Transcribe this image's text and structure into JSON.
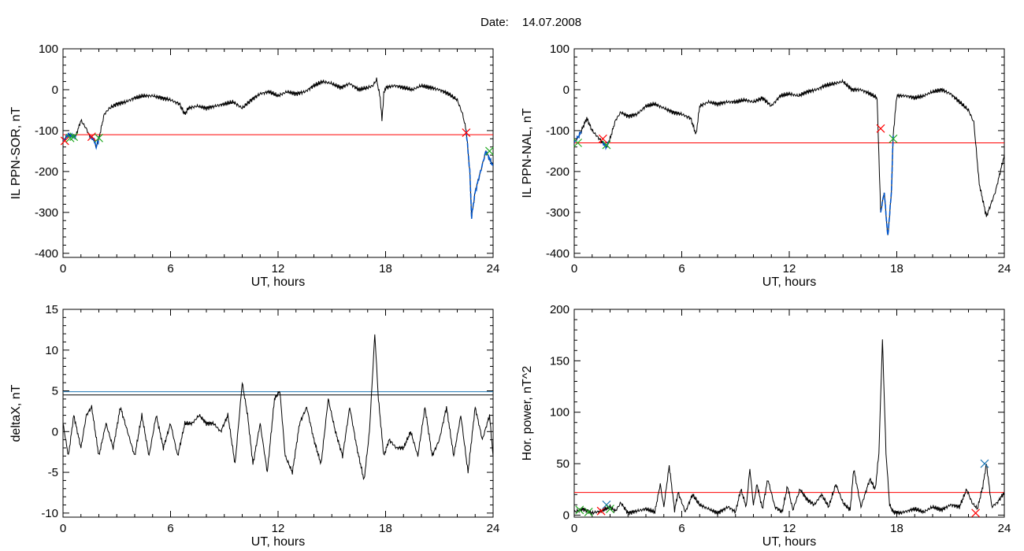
{
  "figure": {
    "date_label": "Date:",
    "date_value": "14.07.2008"
  },
  "colors": {
    "trace": "#000000",
    "threshold_red": "#ff0000",
    "threshold_blue": "#1f77b4",
    "event_blue": "#0055cc",
    "marker_red": "#ff0000",
    "marker_green": "#22aa22",
    "marker_blue": "#1f77b4"
  },
  "chart_data": [
    {
      "id": "sor",
      "type": "line",
      "ylabel": "IL PPN-SOR, nT",
      "xlabel": "UT, hours",
      "xlim": [
        0,
        24
      ],
      "ylim": [
        -410,
        100
      ],
      "xticks": [
        0,
        6,
        12,
        18,
        24
      ],
      "yticks": [
        100,
        0,
        -100,
        -200,
        -300,
        -400
      ],
      "grid": false,
      "x": [
        0,
        0.3,
        0.7,
        1.0,
        1.3,
        1.5,
        1.7,
        1.85,
        2.0,
        2.3,
        2.6,
        3.0,
        3.5,
        4.0,
        4.5,
        5.0,
        5.5,
        6.0,
        6.5,
        6.8,
        7.0,
        7.5,
        8.0,
        8.5,
        9.0,
        9.5,
        10.0,
        10.5,
        11.0,
        11.5,
        12.0,
        12.5,
        13.0,
        13.5,
        14.0,
        14.5,
        15.0,
        15.5,
        16.0,
        16.5,
        17.0,
        17.3,
        17.5,
        17.7,
        17.8,
        17.9,
        18.0,
        18.5,
        19.0,
        19.5,
        20.0,
        20.5,
        21.0,
        21.5,
        22.0,
        22.3,
        22.5,
        22.7,
        22.8,
        23.0,
        23.3,
        23.6,
        23.8,
        24.0
      ],
      "y": [
        -125,
        -110,
        -115,
        -75,
        -95,
        -115,
        -120,
        -140,
        -120,
        -60,
        -45,
        -35,
        -30,
        -20,
        -15,
        -15,
        -20,
        -25,
        -35,
        -60,
        -45,
        -40,
        -45,
        -40,
        -35,
        -30,
        -45,
        -25,
        -10,
        -5,
        -15,
        -5,
        -10,
        -5,
        10,
        20,
        15,
        5,
        15,
        0,
        5,
        10,
        25,
        -20,
        -75,
        -10,
        5,
        10,
        5,
        0,
        10,
        5,
        0,
        -10,
        -25,
        -60,
        -100,
        -200,
        -310,
        -250,
        -200,
        -150,
        -170,
        -185
      ],
      "event_segments": [
        [
          0.0,
          0.7
        ],
        [
          1.5,
          2.0
        ],
        [
          22.5,
          24.0
        ]
      ],
      "thresholds": [
        {
          "y": -110,
          "color": "red"
        }
      ],
      "markers": [
        {
          "x": 0.1,
          "y": -125,
          "color": "red"
        },
        {
          "x": 0.4,
          "y": -118,
          "color": "green"
        },
        {
          "x": 0.6,
          "y": -115,
          "color": "green"
        },
        {
          "x": 1.6,
          "y": -115,
          "color": "red"
        },
        {
          "x": 2.0,
          "y": -118,
          "color": "green"
        },
        {
          "x": 22.5,
          "y": -105,
          "color": "red"
        },
        {
          "x": 23.8,
          "y": -150,
          "color": "green"
        }
      ]
    },
    {
      "id": "nal",
      "type": "line",
      "ylabel": "IL PPN-NAL, nT",
      "xlabel": "UT, hours",
      "xlim": [
        0,
        24
      ],
      "ylim": [
        -410,
        100
      ],
      "xticks": [
        0,
        6,
        12,
        18,
        24
      ],
      "yticks": [
        100,
        0,
        -100,
        -200,
        -300,
        -400
      ],
      "grid": false,
      "x": [
        0,
        0.3,
        0.7,
        1.0,
        1.5,
        1.8,
        2.0,
        2.3,
        2.6,
        3.0,
        3.5,
        4.0,
        4.5,
        5.0,
        5.5,
        6.0,
        6.5,
        6.8,
        7.0,
        7.5,
        8.0,
        8.5,
        9.0,
        9.5,
        10.0,
        10.5,
        11.0,
        11.5,
        12.0,
        12.5,
        13.0,
        13.5,
        14.0,
        14.5,
        15.0,
        15.5,
        16.0,
        16.5,
        16.9,
        17.1,
        17.3,
        17.5,
        17.7,
        17.8,
        18.0,
        18.5,
        19.0,
        19.5,
        20.0,
        20.5,
        21.0,
        21.5,
        22.0,
        22.3,
        22.6,
        23.0,
        23.5,
        24.0
      ],
      "y": [
        -130,
        -110,
        -70,
        -100,
        -125,
        -140,
        -120,
        -75,
        -55,
        -65,
        -60,
        -40,
        -35,
        -45,
        -55,
        -60,
        -70,
        -110,
        -40,
        -30,
        -35,
        -30,
        -30,
        -25,
        -30,
        -20,
        -40,
        -15,
        -10,
        -15,
        -5,
        0,
        10,
        15,
        20,
        0,
        0,
        -10,
        -20,
        -300,
        -250,
        -360,
        -250,
        -110,
        -15,
        -15,
        -20,
        -15,
        -5,
        0,
        -10,
        -30,
        -50,
        -80,
        -230,
        -310,
        -250,
        -160
      ],
      "event_segments": [
        [
          0.0,
          0.4
        ],
        [
          1.6,
          1.9
        ],
        [
          17.1,
          17.8
        ]
      ],
      "thresholds": [
        {
          "y": -130,
          "color": "red"
        }
      ],
      "markers": [
        {
          "x": 0.2,
          "y": -130,
          "color": "green"
        },
        {
          "x": 1.6,
          "y": -120,
          "color": "red"
        },
        {
          "x": 1.8,
          "y": -135,
          "color": "green"
        },
        {
          "x": 17.1,
          "y": -95,
          "color": "red"
        },
        {
          "x": 17.8,
          "y": -120,
          "color": "green"
        }
      ]
    },
    {
      "id": "deltax",
      "type": "line",
      "ylabel": "deltaX, nT",
      "xlabel": "UT, hours",
      "xlim": [
        0,
        24
      ],
      "ylim": [
        -10.5,
        15
      ],
      "xticks": [
        0,
        6,
        12,
        18,
        24
      ],
      "yticks": [
        15,
        10,
        5,
        0,
        -5,
        -10
      ],
      "grid": false,
      "x": [
        0,
        0.3,
        0.6,
        1.0,
        1.3,
        1.6,
        2.0,
        2.4,
        2.8,
        3.2,
        3.6,
        4.0,
        4.4,
        4.8,
        5.2,
        5.6,
        6.0,
        6.4,
        6.8,
        7.2,
        7.6,
        8.0,
        8.4,
        8.8,
        9.2,
        9.6,
        10.0,
        10.3,
        10.6,
        11.0,
        11.4,
        11.8,
        12.1,
        12.4,
        12.8,
        13.2,
        13.6,
        14.0,
        14.4,
        14.8,
        15.2,
        15.6,
        16.0,
        16.4,
        16.8,
        17.1,
        17.4,
        17.6,
        17.9,
        18.2,
        18.6,
        19.0,
        19.4,
        19.8,
        20.2,
        20.6,
        21.0,
        21.4,
        21.8,
        22.2,
        22.6,
        23.0,
        23.4,
        23.8,
        24.0
      ],
      "y": [
        1,
        -3,
        2,
        -2,
        2,
        3,
        -3,
        1,
        -2,
        3,
        0,
        -3,
        2,
        -3,
        2,
        -2,
        1,
        -3,
        1,
        1,
        2,
        1,
        1,
        0,
        2,
        -4,
        6,
        2,
        -4,
        1,
        -5,
        4,
        5,
        -3,
        -5,
        1,
        3,
        -1,
        -4,
        4,
        0,
        -3,
        3,
        -2,
        -6,
        0,
        12,
        4,
        -3,
        -1,
        -2,
        -2,
        0,
        -3,
        3,
        -3,
        -1,
        3,
        -3,
        2,
        -5,
        3,
        -1,
        2,
        -3
      ],
      "thresholds": [
        {
          "y": 4.9,
          "color": "blue"
        },
        {
          "y": 4.5,
          "color": "black"
        }
      ]
    },
    {
      "id": "hpower",
      "type": "line",
      "ylabel": "Hor. power, nT^2",
      "xlabel": "UT, hours",
      "xlim": [
        0,
        24
      ],
      "ylim": [
        -2,
        200
      ],
      "xticks": [
        0,
        6,
        12,
        18,
        24
      ],
      "yticks": [
        200,
        150,
        100,
        50,
        0
      ],
      "grid": false,
      "x": [
        0,
        0.5,
        1.0,
        1.5,
        2.0,
        2.3,
        2.6,
        3.0,
        3.5,
        4.0,
        4.5,
        4.8,
        5.0,
        5.3,
        5.6,
        5.8,
        6.2,
        6.6,
        7.0,
        7.5,
        8.0,
        8.6,
        9.0,
        9.3,
        9.6,
        9.8,
        10.0,
        10.2,
        10.5,
        10.8,
        11.2,
        11.6,
        11.9,
        12.2,
        12.6,
        13.0,
        13.4,
        13.8,
        14.2,
        14.6,
        15.0,
        15.4,
        15.6,
        16.0,
        16.5,
        16.8,
        17.0,
        17.2,
        17.4,
        17.6,
        17.8,
        18.2,
        18.6,
        19.0,
        19.5,
        20.0,
        20.5,
        21.0,
        21.5,
        21.9,
        22.2,
        22.5,
        22.8,
        23.0,
        23.3,
        23.6,
        24.0
      ],
      "y": [
        3,
        6,
        2,
        4,
        8,
        4,
        12,
        2,
        4,
        6,
        3,
        30,
        8,
        48,
        5,
        22,
        3,
        20,
        10,
        6,
        2,
        8,
        3,
        25,
        8,
        45,
        10,
        30,
        6,
        35,
        8,
        3,
        28,
        5,
        25,
        15,
        10,
        20,
        8,
        30,
        12,
        5,
        45,
        8,
        35,
        25,
        60,
        170,
        60,
        10,
        3,
        2,
        4,
        6,
        3,
        8,
        5,
        10,
        8,
        25,
        12,
        6,
        28,
        50,
        8,
        12,
        22
      ],
      "thresholds": [
        {
          "y": 22,
          "color": "red"
        }
      ],
      "markers": [
        {
          "x": 0.3,
          "y": 5,
          "color": "green"
        },
        {
          "x": 0.8,
          "y": 3,
          "color": "green"
        },
        {
          "x": 1.5,
          "y": 4,
          "color": "red"
        },
        {
          "x": 1.8,
          "y": 10,
          "color": "blue"
        },
        {
          "x": 2.0,
          "y": 6,
          "color": "green"
        },
        {
          "x": 22.4,
          "y": 2,
          "color": "red"
        },
        {
          "x": 22.9,
          "y": 50,
          "color": "blue"
        }
      ]
    }
  ]
}
